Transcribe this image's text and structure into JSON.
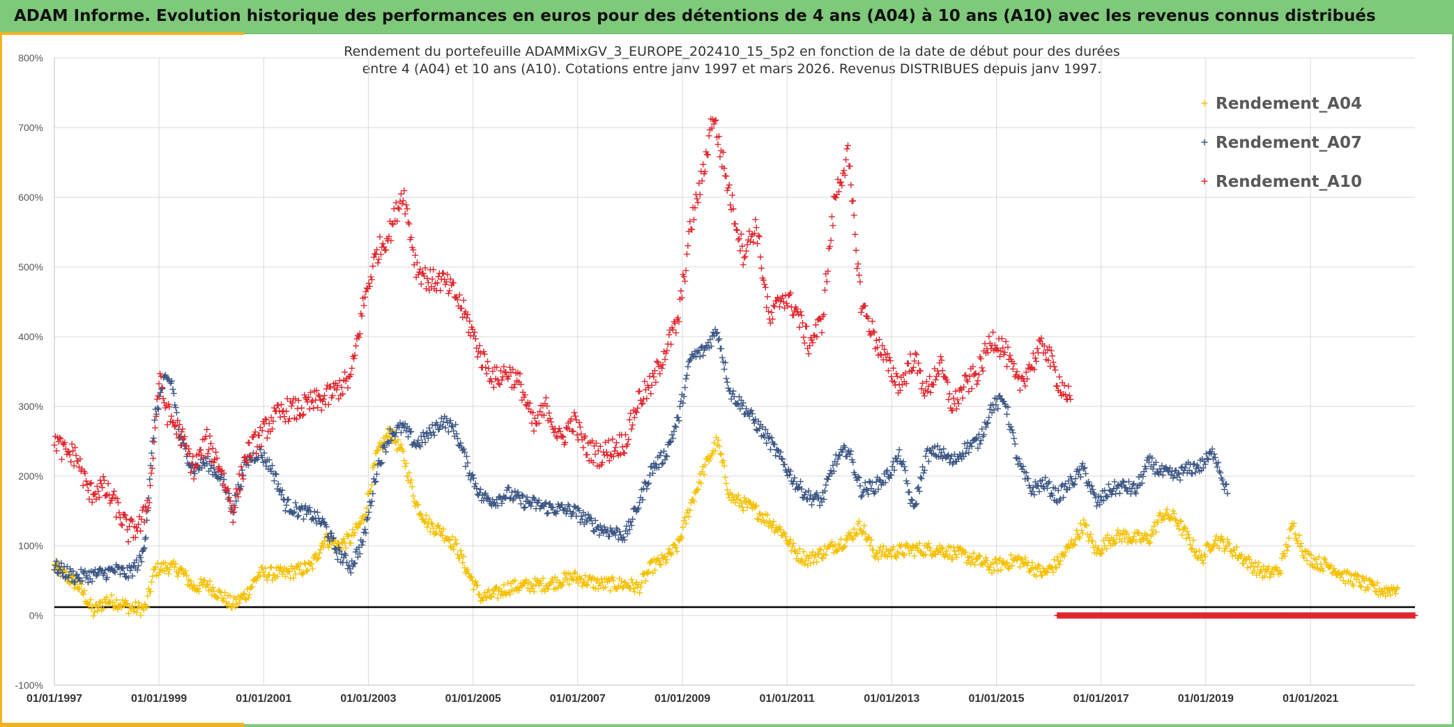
{
  "banner": {
    "title": "ADAM Informe. Evolution historique des performances en euros pour des détentions de 4 ans (A04) à 10 ans (A10) avec les revenus connus distribués"
  },
  "chart_data": {
    "type": "scatter",
    "title_line1": "Rendement du portefeuille ADAMMixGV_3_EUROPE_202410_15_5p2  en fonction de la date de début pour des durées",
    "title_line2": "entre 4 (A04) et 10 ans (A10). Cotations entre janv 1997 et mars 2026. Revenus DISTRIBUES depuis janv 1997.",
    "xlabel": "",
    "ylabel": "",
    "x_range": [
      "01/01/1997",
      "31/12/2022"
    ],
    "ylim": [
      -100,
      800
    ],
    "y_ticks": [
      "-100%",
      "0%",
      "100%",
      "200%",
      "300%",
      "400%",
      "500%",
      "600%",
      "700%",
      "800%"
    ],
    "x_ticks": [
      "01/01/1997",
      "01/01/1999",
      "01/01/2001",
      "01/01/2003",
      "01/01/2005",
      "01/01/2007",
      "01/01/2009",
      "01/01/2011",
      "01/01/2013",
      "01/01/2015",
      "01/01/2017",
      "01/01/2019",
      "01/01/2021"
    ],
    "reference_line_y": 12,
    "grid": true,
    "legend_position": "top-right",
    "marker": "+",
    "series": [
      {
        "name": "Rendement_A04",
        "color": "#f5c000",
        "points": [
          [
            "1997-01-01",
            70
          ],
          [
            "1997-04-01",
            55
          ],
          [
            "1997-07-01",
            40
          ],
          [
            "1997-10-01",
            5
          ],
          [
            "1998-01-01",
            22
          ],
          [
            "1998-04-01",
            18
          ],
          [
            "1998-07-01",
            10
          ],
          [
            "1998-10-01",
            10
          ],
          [
            "1998-12-01",
            65
          ],
          [
            "1999-03-01",
            70
          ],
          [
            "1999-06-01",
            65
          ],
          [
            "1999-09-01",
            40
          ],
          [
            "1999-12-01",
            45
          ],
          [
            "2000-03-01",
            30
          ],
          [
            "2000-06-01",
            15
          ],
          [
            "2000-09-01",
            30
          ],
          [
            "2000-12-01",
            60
          ],
          [
            "2001-06-01",
            60
          ],
          [
            "2001-12-01",
            70
          ],
          [
            "2002-03-01",
            110
          ],
          [
            "2002-06-01",
            100
          ],
          [
            "2002-09-01",
            110
          ],
          [
            "2002-12-01",
            140
          ],
          [
            "2003-03-01",
            230
          ],
          [
            "2003-06-01",
            265
          ],
          [
            "2003-09-01",
            230
          ],
          [
            "2003-12-01",
            160
          ],
          [
            "2004-03-01",
            130
          ],
          [
            "2004-06-01",
            120
          ],
          [
            "2004-09-01",
            100
          ],
          [
            "2004-12-01",
            60
          ],
          [
            "2005-03-01",
            25
          ],
          [
            "2005-06-01",
            30
          ],
          [
            "2005-09-01",
            40
          ],
          [
            "2005-12-01",
            42
          ],
          [
            "2006-06-01",
            45
          ],
          [
            "2006-12-01",
            55
          ],
          [
            "2007-06-01",
            45
          ],
          [
            "2007-12-01",
            45
          ],
          [
            "2008-03-01",
            40
          ],
          [
            "2008-06-01",
            70
          ],
          [
            "2008-09-01",
            80
          ],
          [
            "2008-12-01",
            100
          ],
          [
            "2009-03-01",
            160
          ],
          [
            "2009-06-01",
            210
          ],
          [
            "2009-09-01",
            250
          ],
          [
            "2009-12-01",
            170
          ],
          [
            "2010-06-01",
            150
          ],
          [
            "2010-12-01",
            120
          ],
          [
            "2011-03-01",
            90
          ],
          [
            "2011-06-01",
            80
          ],
          [
            "2011-12-01",
            100
          ],
          [
            "2012-03-01",
            110
          ],
          [
            "2012-06-01",
            130
          ],
          [
            "2012-09-01",
            90
          ],
          [
            "2012-12-01",
            90
          ],
          [
            "2013-06-01",
            95
          ],
          [
            "2013-12-01",
            95
          ],
          [
            "2014-06-01",
            85
          ],
          [
            "2014-12-01",
            70
          ],
          [
            "2015-06-01",
            80
          ],
          [
            "2015-12-01",
            60
          ],
          [
            "2016-03-01",
            75
          ],
          [
            "2016-06-01",
            100
          ],
          [
            "2016-09-01",
            130
          ],
          [
            "2016-12-01",
            90
          ],
          [
            "2017-03-01",
            110
          ],
          [
            "2017-06-01",
            115
          ],
          [
            "2017-09-01",
            110
          ],
          [
            "2017-12-01",
            110
          ],
          [
            "2018-03-01",
            145
          ],
          [
            "2018-06-01",
            140
          ],
          [
            "2018-09-01",
            110
          ],
          [
            "2018-12-01",
            80
          ],
          [
            "2019-03-01",
            110
          ],
          [
            "2019-06-01",
            100
          ],
          [
            "2019-09-01",
            85
          ],
          [
            "2019-12-01",
            70
          ],
          [
            "2020-03-01",
            60
          ],
          [
            "2020-06-01",
            65
          ],
          [
            "2020-09-01",
            130
          ],
          [
            "2020-12-01",
            85
          ],
          [
            "2021-03-01",
            75
          ],
          [
            "2021-06-01",
            70
          ],
          [
            "2021-09-01",
            55
          ],
          [
            "2021-12-01",
            50
          ],
          [
            "2022-03-01",
            40
          ],
          [
            "2022-06-01",
            35
          ],
          [
            "2022-09-01",
            40
          ]
        ]
      },
      {
        "name": "Rendement_A07",
        "color": "#3a5583",
        "points": [
          [
            "1997-01-01",
            70
          ],
          [
            "1997-06-01",
            55
          ],
          [
            "1997-12-01",
            60
          ],
          [
            "1998-03-01",
            65
          ],
          [
            "1998-06-01",
            60
          ],
          [
            "1998-09-01",
            80
          ],
          [
            "1998-10-01",
            120
          ],
          [
            "1998-12-01",
            280
          ],
          [
            "1999-02-01",
            335
          ],
          [
            "1999-04-01",
            335
          ],
          [
            "1999-06-01",
            250
          ],
          [
            "1999-09-01",
            210
          ],
          [
            "1999-12-01",
            220
          ],
          [
            "2000-03-01",
            200
          ],
          [
            "2000-06-01",
            155
          ],
          [
            "2000-09-01",
            220
          ],
          [
            "2000-12-01",
            235
          ],
          [
            "2001-03-01",
            210
          ],
          [
            "2001-06-01",
            160
          ],
          [
            "2001-09-01",
            150
          ],
          [
            "2001-12-01",
            145
          ],
          [
            "2002-03-01",
            130
          ],
          [
            "2002-06-01",
            90
          ],
          [
            "2002-09-01",
            70
          ],
          [
            "2002-12-01",
            110
          ],
          [
            "2003-03-01",
            210
          ],
          [
            "2003-06-01",
            260
          ],
          [
            "2003-09-01",
            270
          ],
          [
            "2003-12-01",
            245
          ],
          [
            "2004-03-01",
            260
          ],
          [
            "2004-06-01",
            280
          ],
          [
            "2004-09-01",
            265
          ],
          [
            "2004-12-01",
            210
          ],
          [
            "2005-03-01",
            170
          ],
          [
            "2005-06-01",
            165
          ],
          [
            "2005-09-01",
            175
          ],
          [
            "2005-12-01",
            165
          ],
          [
            "2006-06-01",
            155
          ],
          [
            "2006-12-01",
            150
          ],
          [
            "2007-06-01",
            125
          ],
          [
            "2007-12-01",
            115
          ],
          [
            "2008-03-01",
            160
          ],
          [
            "2008-06-01",
            210
          ],
          [
            "2008-09-01",
            230
          ],
          [
            "2008-12-01",
            280
          ],
          [
            "2009-03-01",
            370
          ],
          [
            "2009-06-01",
            380
          ],
          [
            "2009-09-01",
            410
          ],
          [
            "2009-12-01",
            320
          ],
          [
            "2010-03-01",
            300
          ],
          [
            "2010-06-01",
            275
          ],
          [
            "2010-09-01",
            250
          ],
          [
            "2010-12-01",
            220
          ],
          [
            "2011-03-01",
            190
          ],
          [
            "2011-06-01",
            170
          ],
          [
            "2011-09-01",
            165
          ],
          [
            "2011-12-01",
            220
          ],
          [
            "2012-03-01",
            240
          ],
          [
            "2012-06-01",
            180
          ],
          [
            "2012-09-01",
            185
          ],
          [
            "2012-12-01",
            200
          ],
          [
            "2013-03-01",
            230
          ],
          [
            "2013-06-01",
            150
          ],
          [
            "2013-09-01",
            230
          ],
          [
            "2013-12-01",
            235
          ],
          [
            "2014-03-01",
            220
          ],
          [
            "2014-06-01",
            240
          ],
          [
            "2014-09-01",
            250
          ],
          [
            "2014-12-01",
            300
          ],
          [
            "2015-03-01",
            310
          ],
          [
            "2015-06-01",
            220
          ],
          [
            "2015-09-01",
            180
          ],
          [
            "2015-12-01",
            190
          ],
          [
            "2016-03-01",
            170
          ],
          [
            "2016-06-01",
            190
          ],
          [
            "2016-09-01",
            210
          ],
          [
            "2016-12-01",
            160
          ],
          [
            "2017-03-01",
            180
          ],
          [
            "2017-06-01",
            185
          ],
          [
            "2017-09-01",
            180
          ],
          [
            "2017-12-01",
            220
          ],
          [
            "2018-03-01",
            205
          ],
          [
            "2018-06-01",
            200
          ],
          [
            "2018-09-01",
            210
          ],
          [
            "2018-12-01",
            215
          ],
          [
            "2019-03-01",
            235
          ],
          [
            "2019-06-01",
            175
          ]
        ]
      },
      {
        "name": "Rendement_A10",
        "color": "#e0242b",
        "points": [
          [
            "1997-01-01",
            255
          ],
          [
            "1997-03-01",
            235
          ],
          [
            "1997-06-01",
            230
          ],
          [
            "1997-09-01",
            175
          ],
          [
            "1997-12-01",
            185
          ],
          [
            "1998-03-01",
            160
          ],
          [
            "1998-06-01",
            120
          ],
          [
            "1998-09-01",
            130
          ],
          [
            "1998-11-01",
            180
          ],
          [
            "1999-01-01",
            340
          ],
          [
            "1999-03-01",
            290
          ],
          [
            "1999-06-01",
            260
          ],
          [
            "1999-09-01",
            210
          ],
          [
            "1999-12-01",
            250
          ],
          [
            "2000-03-01",
            215
          ],
          [
            "2000-06-01",
            150
          ],
          [
            "2000-09-01",
            230
          ],
          [
            "2000-12-01",
            255
          ],
          [
            "2001-03-01",
            280
          ],
          [
            "2001-06-01",
            295
          ],
          [
            "2001-09-01",
            295
          ],
          [
            "2001-12-01",
            305
          ],
          [
            "2002-03-01",
            310
          ],
          [
            "2002-06-01",
            325
          ],
          [
            "2002-09-01",
            340
          ],
          [
            "2002-12-01",
            450
          ],
          [
            "2003-03-01",
            520
          ],
          [
            "2003-06-01",
            550
          ],
          [
            "2003-09-01",
            610
          ],
          [
            "2003-12-01",
            500
          ],
          [
            "2004-03-01",
            480
          ],
          [
            "2004-06-01",
            480
          ],
          [
            "2004-09-01",
            460
          ],
          [
            "2004-12-01",
            420
          ],
          [
            "2005-03-01",
            370
          ],
          [
            "2005-06-01",
            340
          ],
          [
            "2005-09-01",
            350
          ],
          [
            "2005-12-01",
            330
          ],
          [
            "2006-03-01",
            270
          ],
          [
            "2006-06-01",
            300
          ],
          [
            "2006-09-01",
            250
          ],
          [
            "2006-12-01",
            280
          ],
          [
            "2007-03-01",
            240
          ],
          [
            "2007-06-01",
            230
          ],
          [
            "2007-09-01",
            240
          ],
          [
            "2007-12-01",
            250
          ],
          [
            "2008-03-01",
            310
          ],
          [
            "2008-06-01",
            330
          ],
          [
            "2008-09-01",
            380
          ],
          [
            "2008-12-01",
            420
          ],
          [
            "2009-03-01",
            560
          ],
          [
            "2009-06-01",
            640
          ],
          [
            "2009-08-01",
            720
          ],
          [
            "2009-12-01",
            600
          ],
          [
            "2010-03-01",
            520
          ],
          [
            "2010-06-01",
            560
          ],
          [
            "2010-09-01",
            420
          ],
          [
            "2010-12-01",
            460
          ],
          [
            "2011-03-01",
            440
          ],
          [
            "2011-06-01",
            390
          ],
          [
            "2011-09-01",
            420
          ],
          [
            "2011-12-01",
            600
          ],
          [
            "2012-03-01",
            660
          ],
          [
            "2012-06-01",
            450
          ],
          [
            "2012-09-01",
            400
          ],
          [
            "2012-12-01",
            360
          ],
          [
            "2013-03-01",
            330
          ],
          [
            "2013-06-01",
            370
          ],
          [
            "2013-09-01",
            320
          ],
          [
            "2013-12-01",
            360
          ],
          [
            "2014-03-01",
            300
          ],
          [
            "2014-06-01",
            330
          ],
          [
            "2014-09-01",
            350
          ],
          [
            "2014-12-01",
            400
          ],
          [
            "2015-03-01",
            380
          ],
          [
            "2015-06-01",
            330
          ],
          [
            "2015-09-01",
            360
          ],
          [
            "2015-12-01",
            390
          ],
          [
            "2016-03-01",
            340
          ],
          [
            "2016-06-01",
            310
          ]
        ]
      }
    ],
    "zero_markers": {
      "color": "#e0242b",
      "from": "2016-03-01",
      "to": "2022-12-31",
      "value": 0
    }
  }
}
